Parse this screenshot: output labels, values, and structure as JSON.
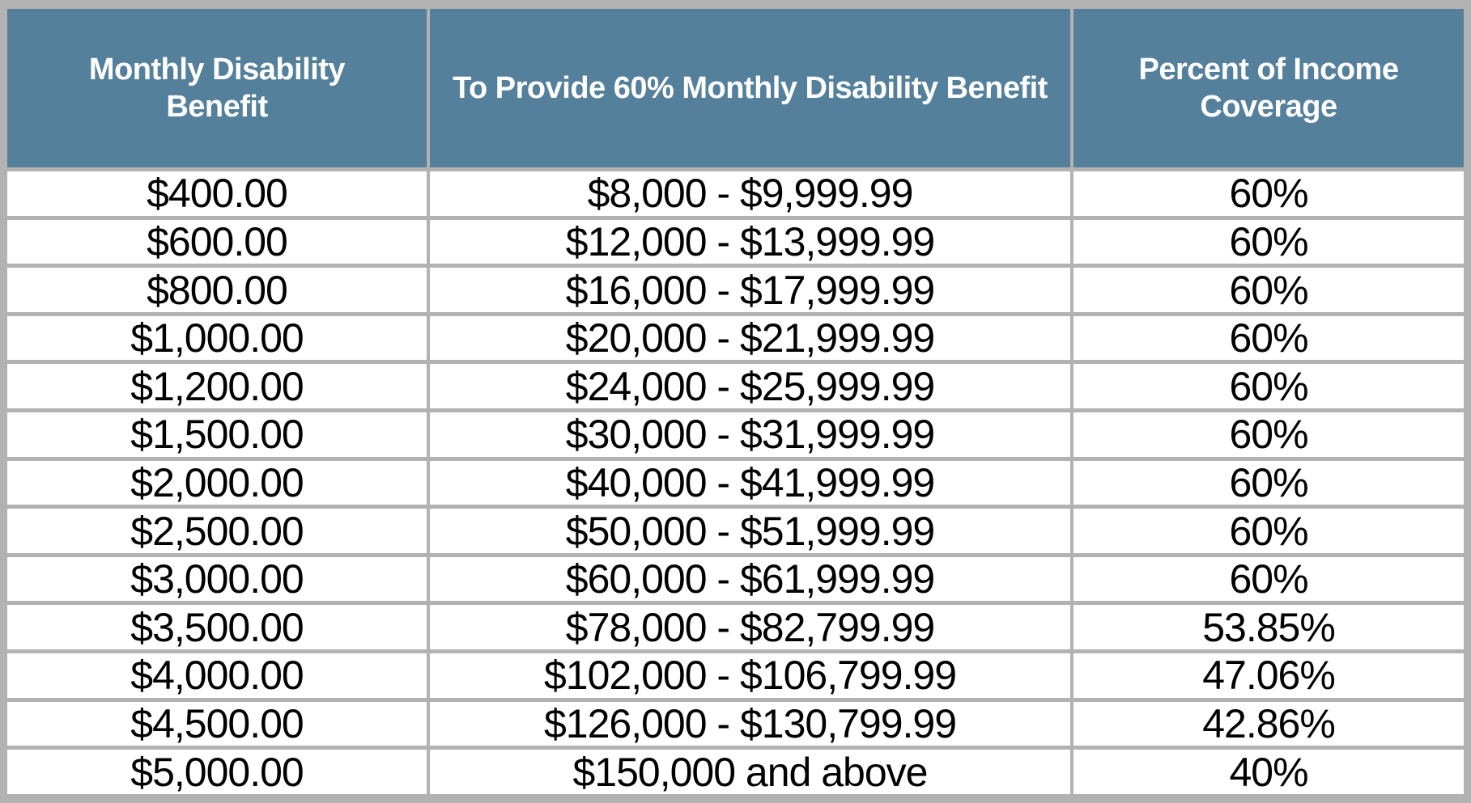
{
  "table": {
    "columns": [
      "Monthly Disability Benefit",
      "To Provide 60% Monthly Disability Benefit",
      "Percent of Income Coverage"
    ],
    "rows": [
      [
        "$400.00",
        "$8,000 - $9,999.99",
        "60%"
      ],
      [
        "$600.00",
        "$12,000 - $13,999.99",
        "60%"
      ],
      [
        "$800.00",
        "$16,000 - $17,999.99",
        "60%"
      ],
      [
        "$1,000.00",
        "$20,000 - $21,999.99",
        "60%"
      ],
      [
        "$1,200.00",
        "$24,000 - $25,999.99",
        "60%"
      ],
      [
        "$1,500.00",
        "$30,000 - $31,999.99",
        "60%"
      ],
      [
        "$2,000.00",
        "$40,000 - $41,999.99",
        "60%"
      ],
      [
        "$2,500.00",
        "$50,000 - $51,999.99",
        "60%"
      ],
      [
        "$3,000.00",
        "$60,000 - $61,999.99",
        "60%"
      ],
      [
        "$3,500.00",
        "$78,000 - $82,799.99",
        "53.85%"
      ],
      [
        "$4,000.00",
        "$102,000 - $106,799.99",
        "47.06%"
      ],
      [
        "$4,500.00",
        "$126,000 - $130,799.99",
        "42.86%"
      ],
      [
        "$5,000.00",
        "$150,000 and above",
        "40%"
      ]
    ]
  },
  "colors": {
    "header_bg": "#54809B",
    "header_text": "#FFFFFF",
    "grid": "#B2B2B2",
    "row_bg": "#FFFFFF",
    "cell_text": "#000000"
  }
}
